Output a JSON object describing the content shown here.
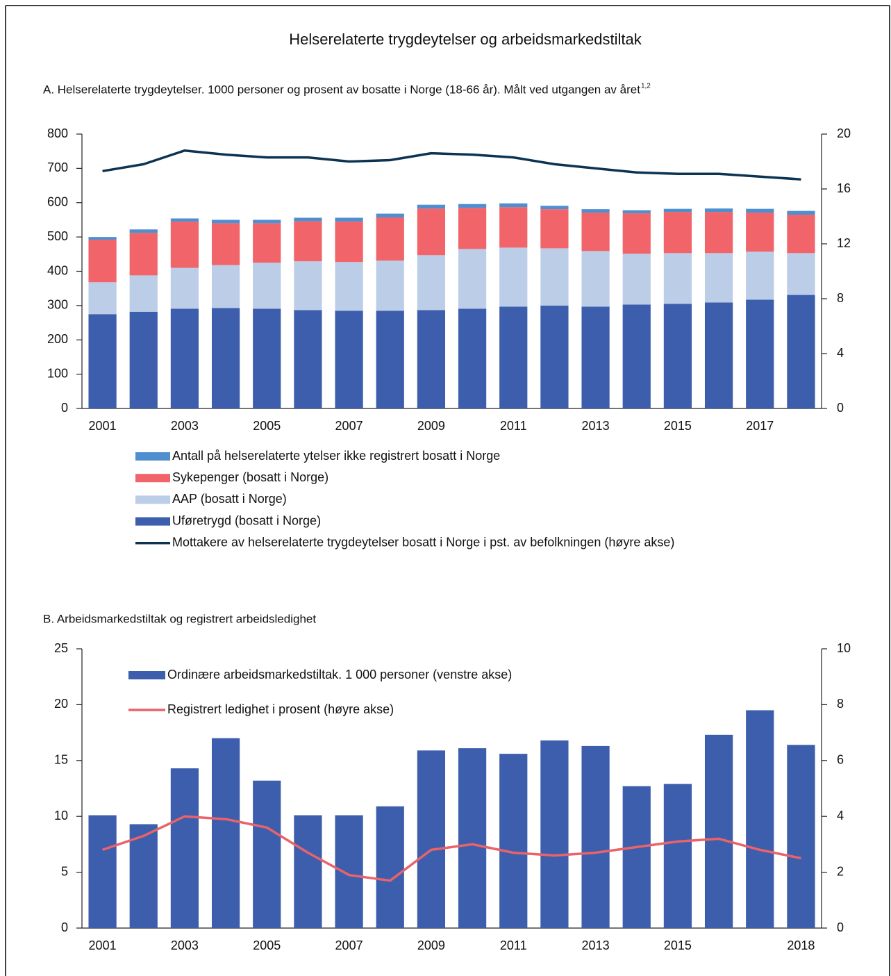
{
  "title": "Helserelaterte trygdeytelser og arbeidsmarkedstiltak",
  "chart_data": [
    {
      "type": "bar",
      "stacked": true,
      "title": "A.   Helserelaterte trygdeytelser. 1000 personer og prosent av bosatte i Norge (18-66 år). Målt ved utgangen av året",
      "title_note": "1,2",
      "categories": [
        "2001",
        null,
        "2003",
        null,
        "2005",
        null,
        "2007",
        null,
        "2009",
        null,
        "2011",
        null,
        "2013",
        null,
        "2015",
        null,
        "2017",
        null
      ],
      "series": [
        {
          "name": "Uføretrygd (bosatt i Norge)",
          "color": "#3c5eac",
          "values": [
            275,
            282,
            291,
            293,
            291,
            287,
            285,
            285,
            287,
            291,
            297,
            300,
            297,
            303,
            305,
            309,
            317,
            331
          ]
        },
        {
          "name": "AAP (bosatt i Norge)",
          "color": "#bccde8",
          "values": [
            93,
            106,
            119,
            125,
            134,
            142,
            142,
            146,
            160,
            174,
            172,
            167,
            162,
            148,
            148,
            144,
            140,
            122
          ]
        },
        {
          "name": "Sykepenger (bosatt i Norge)",
          "color": "#f0646a",
          "values": [
            124,
            124,
            135,
            122,
            115,
            117,
            118,
            126,
            136,
            120,
            118,
            114,
            112,
            118,
            120,
            120,
            114,
            112
          ]
        },
        {
          "name": "Antall på helserelaterte ytelser ikke registrert bosatt i Norge",
          "color": "#4f8fd0",
          "values": [
            8,
            10,
            9,
            10,
            10,
            10,
            11,
            11,
            11,
            11,
            11,
            10,
            10,
            9,
            9,
            10,
            11,
            11
          ]
        },
        {
          "name": "Mottakere av helserelaterte trygdeytelser bosatt i Norge i pst. av befolkningen (høyre akse)",
          "color": "#0d3353",
          "type": "line",
          "axis": "y2",
          "values": [
            17.3,
            17.8,
            18.8,
            18.5,
            18.3,
            18.3,
            18.0,
            18.1,
            18.6,
            18.5,
            18.3,
            17.8,
            17.5,
            17.2,
            17.1,
            17.1,
            16.9,
            16.7
          ]
        }
      ],
      "ylim": [
        0,
        800
      ],
      "yticks": [
        0,
        100,
        200,
        300,
        400,
        500,
        600,
        700,
        800
      ],
      "y2lim": [
        0,
        20
      ],
      "y2ticks": [
        0,
        4,
        8,
        12,
        16,
        20
      ],
      "grid": false,
      "legend": "bottom"
    },
    {
      "type": "bar",
      "stacked": false,
      "title": "B.   Arbeidsmarkedstiltak og registrert arbeidsledighet",
      "categories": [
        "2001",
        null,
        "2003",
        null,
        "2005",
        null,
        "2007",
        null,
        "2009",
        null,
        "2011",
        null,
        "2013",
        null,
        "2015",
        null,
        null,
        "2018"
      ],
      "series": [
        {
          "name": "Ordinære arbeidsmarkedstiltak. 1 000 personer (venstre akse)",
          "color": "#3c5eac",
          "values": [
            10.1,
            9.3,
            14.3,
            17.0,
            13.2,
            10.1,
            10.1,
            10.9,
            15.9,
            16.1,
            15.6,
            16.8,
            16.3,
            12.7,
            12.9,
            17.3,
            19.5,
            16.4
          ]
        },
        {
          "name": "Registrert ledighet i prosent (høyre akse)",
          "color": "#e8636a",
          "type": "line",
          "axis": "y2",
          "values": [
            2.8,
            3.3,
            4.0,
            3.9,
            3.6,
            2.7,
            1.9,
            1.7,
            2.8,
            3.0,
            2.7,
            2.6,
            2.7,
            2.9,
            3.1,
            3.2,
            2.8,
            2.5
          ]
        }
      ],
      "ylim": [
        0,
        25
      ],
      "yticks": [
        0,
        5,
        10,
        15,
        20,
        25
      ],
      "y2lim": [
        0,
        10
      ],
      "y2ticks": [
        0,
        2,
        4,
        6,
        8,
        10
      ],
      "grid": false,
      "legend": "upper left"
    }
  ]
}
